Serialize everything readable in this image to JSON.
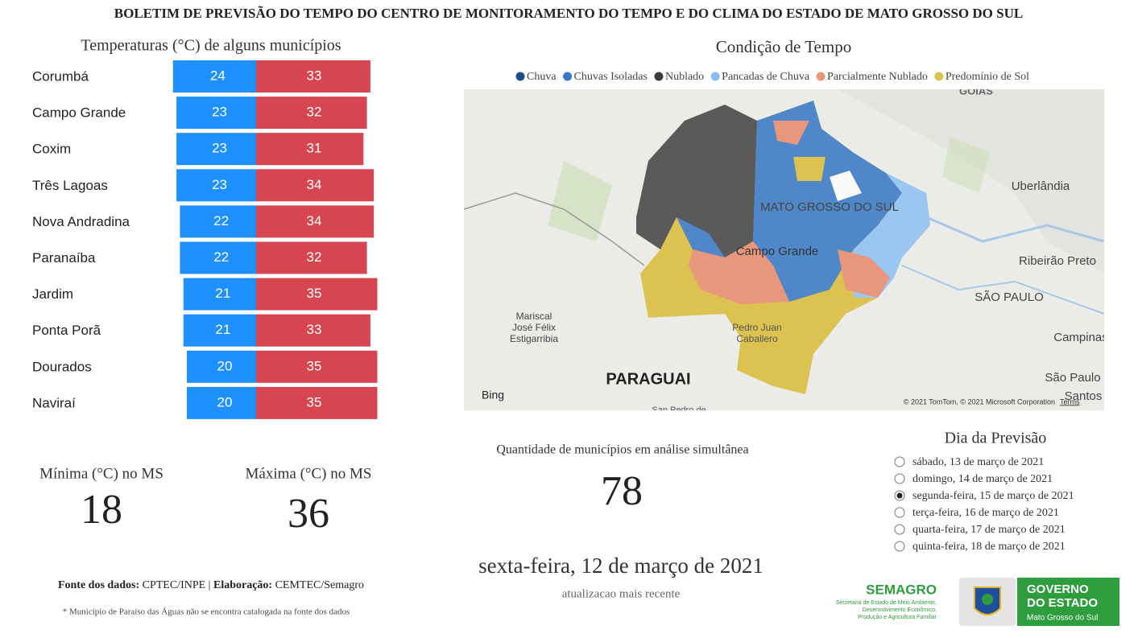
{
  "header": {
    "title": "BOLETIM DE PREVISÃO DO TEMPO DO CENTRO DE MONITORAMENTO DO TEMPO E DO CLIMA DO ESTADO DE MATO GROSSO DO SUL"
  },
  "chart_data": {
    "type": "bar",
    "title": "Temperaturas (°C) de alguns municípios",
    "categories": [
      "Corumbá",
      "Campo Grande",
      "Coxim",
      "Três Lagoas",
      "Nova Andradina",
      "Paranaíba",
      "Jardim",
      "Ponta Porã",
      "Dourados",
      "Naviraí"
    ],
    "series": [
      {
        "color": "#1e90ff",
        "values": [
          24,
          23,
          23,
          23,
          22,
          22,
          21,
          21,
          20,
          20
        ]
      },
      {
        "color": "#d64550",
        "values": [
          33,
          32,
          31,
          34,
          34,
          32,
          35,
          33,
          35,
          35
        ]
      }
    ]
  },
  "cards": {
    "min": {
      "label": "Mínima (°C) no MS",
      "value": 18
    },
    "max": {
      "label": "Máxima (°C) no MS",
      "value": 36
    },
    "count": {
      "label": "Quantidade de municípios em análise simultânea",
      "value": 78
    }
  },
  "map": {
    "title": "Condição de Tempo",
    "legend": [
      {
        "name": "Chuva",
        "color": "#1a4f8c"
      },
      {
        "name": "Chuvas Isoladas",
        "color": "#3a78c8"
      },
      {
        "name": "Nublado",
        "color": "#3c3c3c"
      },
      {
        "name": "Pancadas de Chuva",
        "color": "#8bbcf0"
      },
      {
        "name": "Parcialmente Nublado",
        "color": "#e8967c"
      },
      {
        "name": "Predomínio de Sol",
        "color": "#dcc250"
      }
    ],
    "labels": [
      "GOIÁS",
      "Uberlândia",
      "MATO GROSSO DO SUL",
      "Campo Grande",
      "Ribeirão Preto",
      "SÃO PAULO",
      "Mariscal",
      "José Félix",
      "Estigarribia",
      "Pedro Juan",
      "Caballero",
      "PARAGUAI",
      "Campinas",
      "São Paulo",
      "Santos",
      "San Pedro de"
    ],
    "brand": "Bing",
    "attribution": "© 2021 TomTom, © 2021 Microsoft Corporation",
    "terms": "Terms"
  },
  "update": {
    "date": "sexta-feira, 12 de março de 2021",
    "note": "atualizacao mais recente"
  },
  "forecast_day": {
    "title": "Dia da Previsão",
    "selected": 2,
    "options": [
      "sábado, 13 de março de 2021",
      "domingo, 14 de março de 2021",
      "segunda-feira, 15 de março de 2021",
      "terça-feira, 16 de março de 2021",
      "quarta-feira, 17 de março de 2021",
      "quinta-feira, 18 de março de 2021"
    ]
  },
  "footer": {
    "source_label": "Fonte dos dados:",
    "source": " CPTEC/INPE | ",
    "made_label": "Elaboração:",
    "made": " CEMTEC/Semagro",
    "note": "* Município de Paraíso das Águas não se encontra catalogada na fonte dos dados"
  },
  "logos": {
    "semagro": {
      "name": "SEMAGRO",
      "lines": [
        "Secretaria de Estado de Meio Ambiente,",
        "Desenvolvimento Econômico,",
        "Produção e Agricultura Familiar"
      ]
    },
    "governo": {
      "lines": [
        "GOVERNO",
        "DO ESTADO",
        "Mato Grosso do Sul"
      ]
    }
  }
}
